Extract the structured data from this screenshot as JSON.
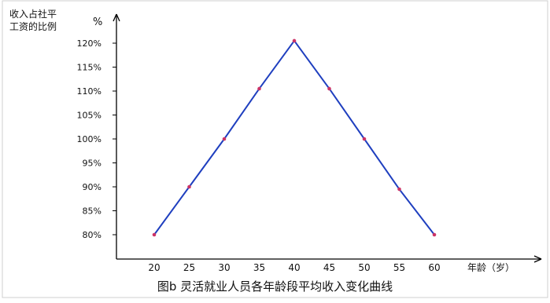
{
  "chart_data": {
    "type": "line",
    "ylabel_line1": "收入占社平",
    "ylabel_line2": "工资的比例",
    "ylabel_unit": "%",
    "xlabel": "年龄（岁）",
    "caption": "图b 灵活就业人员各年龄段平均收入变化曲线",
    "x": [
      20,
      25,
      30,
      35,
      40,
      45,
      50,
      55,
      60
    ],
    "x_tick_labels": [
      "20",
      "25",
      "30",
      "35",
      "40",
      "45",
      "50",
      "55",
      "60"
    ],
    "y_tick_labels": [
      "80%",
      "85%",
      "90%",
      "95%",
      "100%",
      "105%",
      "110%",
      "115%",
      "120%"
    ],
    "y_ticks": [
      80,
      85,
      90,
      95,
      100,
      105,
      110,
      115,
      120
    ],
    "ylim": [
      76,
      125
    ],
    "series": [
      {
        "values": [
          80,
          90,
          100,
          110.5,
          120.5,
          110.5,
          100,
          89.5,
          80
        ]
      }
    ],
    "line_color": "#1f3fbf",
    "marker_color": "#cc3366",
    "grid": false
  }
}
